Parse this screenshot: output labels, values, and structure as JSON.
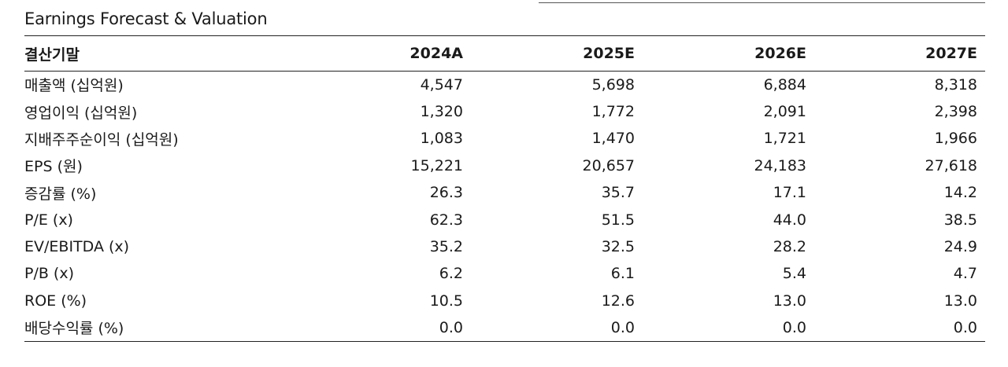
{
  "title": "Earnings Forecast & Valuation",
  "header": {
    "label": "결산기말",
    "years": [
      "2024A",
      "2025E",
      "2026E",
      "2027E"
    ]
  },
  "rows": [
    {
      "label": "매출액 (십억원)",
      "values": [
        "4,547",
        "5,698",
        "6,884",
        "8,318"
      ]
    },
    {
      "label": "영업이익 (십억원)",
      "values": [
        "1,320",
        "1,772",
        "2,091",
        "2,398"
      ]
    },
    {
      "label": "지배주주순이익 (십억원)",
      "values": [
        "1,083",
        "1,470",
        "1,721",
        "1,966"
      ]
    },
    {
      "label": "EPS (원)",
      "values": [
        "15,221",
        "20,657",
        "24,183",
        "27,618"
      ]
    },
    {
      "label": "증감률 (%)",
      "values": [
        "26.3",
        "35.7",
        "17.1",
        "14.2"
      ]
    },
    {
      "label": "P/E (x)",
      "values": [
        "62.3",
        "51.5",
        "44.0",
        "38.5"
      ]
    },
    {
      "label": "EV/EBITDA (x)",
      "values": [
        "35.2",
        "32.5",
        "28.2",
        "24.9"
      ]
    },
    {
      "label": "P/B (x)",
      "values": [
        "6.2",
        "6.1",
        "5.4",
        "4.7"
      ]
    },
    {
      "label": "ROE (%)",
      "values": [
        "10.5",
        "12.6",
        "13.0",
        "13.0"
      ]
    },
    {
      "label": "배당수익률 (%)",
      "values": [
        "0.0",
        "0.0",
        "0.0",
        "0.0"
      ]
    }
  ]
}
